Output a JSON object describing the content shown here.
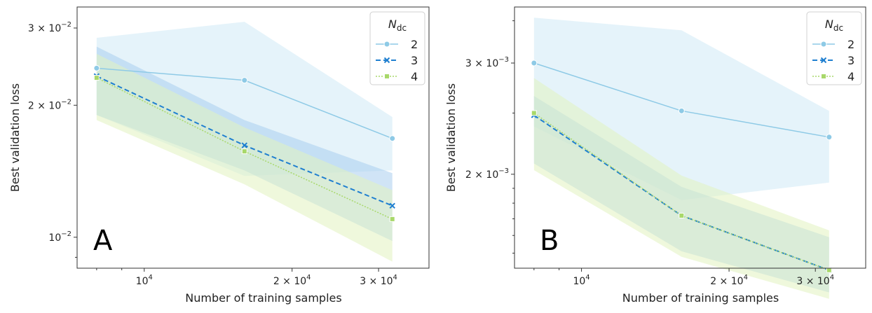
{
  "chart_data": [
    {
      "type": "line",
      "panel_label": "A",
      "xscale": "log",
      "yscale": "log",
      "xlabel": "Number of training samples",
      "ylabel": "Best validation loss",
      "xlim": [
        7300,
        38000
      ],
      "ylim": [
        0.0085,
        0.0335
      ],
      "x_ticks": [
        {
          "value": 10000,
          "base": "10",
          "exp": "4",
          "coef": ""
        },
        {
          "value": 20000,
          "base": "10",
          "exp": "4",
          "coef": "2 × "
        },
        {
          "value": 30000,
          "base": "10",
          "exp": "4",
          "coef": "3 × "
        }
      ],
      "y_ticks": [
        {
          "value": 0.01,
          "base": "10",
          "exp": "−2",
          "coef": ""
        },
        {
          "value": 0.02,
          "base": "10",
          "exp": "−2",
          "coef": "2 × "
        },
        {
          "value": 0.03,
          "base": "10",
          "exp": "−2",
          "coef": "3 × "
        }
      ],
      "legend": {
        "title_main": "N",
        "title_sub": "dc",
        "position": "top-right"
      },
      "series": [
        {
          "name": "2",
          "marker": "circle",
          "dash": "solid",
          "color": "#8ecae6",
          "x": [
            8000,
            16000,
            32000
          ],
          "y": [
            0.0243,
            0.0228,
            0.0168
          ],
          "band_lo": [
            0.019,
            0.0138,
            0.0142
          ],
          "band_hi": [
            0.0285,
            0.031,
            0.0188
          ],
          "band_color": "#cfeaf6"
        },
        {
          "name": "3",
          "marker": "x",
          "dash": "dashed",
          "color": "#1f7fd0",
          "x": [
            8000,
            16000,
            32000
          ],
          "y": [
            0.0233,
            0.0162,
            0.0118
          ],
          "band_lo": [
            0.019,
            0.0142,
            0.0098
          ],
          "band_hi": [
            0.0272,
            0.0185,
            0.014
          ],
          "band_color": "#a9cdef"
        },
        {
          "name": "4",
          "marker": "square",
          "dash": "dotted",
          "color": "#a8d86a",
          "x": [
            8000,
            16000,
            32000
          ],
          "y": [
            0.0231,
            0.0157,
            0.011
          ],
          "band_lo": [
            0.0185,
            0.0132,
            0.0088
          ],
          "band_hi": [
            0.0262,
            0.0178,
            0.0128
          ],
          "band_color": "#e2f2bf"
        }
      ]
    },
    {
      "type": "line",
      "panel_label": "B",
      "xscale": "log",
      "yscale": "log",
      "xlabel": "Number of training samples",
      "ylabel": "Best validation loss",
      "xlim": [
        7300,
        38000
      ],
      "ylim": [
        0.00142,
        0.00368
      ],
      "x_ticks": [
        {
          "value": 10000,
          "base": "10",
          "exp": "4",
          "coef": ""
        },
        {
          "value": 20000,
          "base": "10",
          "exp": "4",
          "coef": "2 × "
        },
        {
          "value": 30000,
          "base": "10",
          "exp": "4",
          "coef": "3 × "
        }
      ],
      "y_ticks": [
        {
          "value": 0.002,
          "base": "10",
          "exp": "−3",
          "coef": "2 × "
        },
        {
          "value": 0.003,
          "base": "10",
          "exp": "−3",
          "coef": "3 × "
        }
      ],
      "legend": {
        "title_main": "N",
        "title_sub": "dc",
        "position": "top-right"
      },
      "series": [
        {
          "name": "2",
          "marker": "circle",
          "dash": "solid",
          "color": "#8ecae6",
          "x": [
            8000,
            16000,
            32000
          ],
          "y": [
            0.003,
            0.00252,
            0.00229
          ],
          "band_lo": [
            0.00238,
            0.00182,
            0.00194
          ],
          "band_hi": [
            0.00354,
            0.00338,
            0.00252
          ],
          "band_color": "#cfeaf6"
        },
        {
          "name": "3",
          "marker": "x",
          "dash": "dashed",
          "color": "#1f7fd0",
          "x": [
            8000,
            16000,
            32000
          ],
          "y": [
            0.00248,
            0.00172,
            0.00141
          ],
          "band_lo": [
            0.00208,
            0.00151,
            0.0013
          ],
          "band_hi": [
            0.00266,
            0.00191,
            0.00159
          ],
          "band_color": "#a9cdef"
        },
        {
          "name": "4",
          "marker": "square",
          "dash": "dotted",
          "color": "#a8d86a",
          "x": [
            8000,
            16000,
            32000
          ],
          "y": [
            0.0025,
            0.00172,
            0.00141
          ],
          "band_lo": [
            0.00203,
            0.00148,
            0.00127
          ],
          "band_hi": [
            0.00284,
            0.00199,
            0.00163
          ],
          "band_color": "#e2f2bf"
        }
      ]
    }
  ]
}
